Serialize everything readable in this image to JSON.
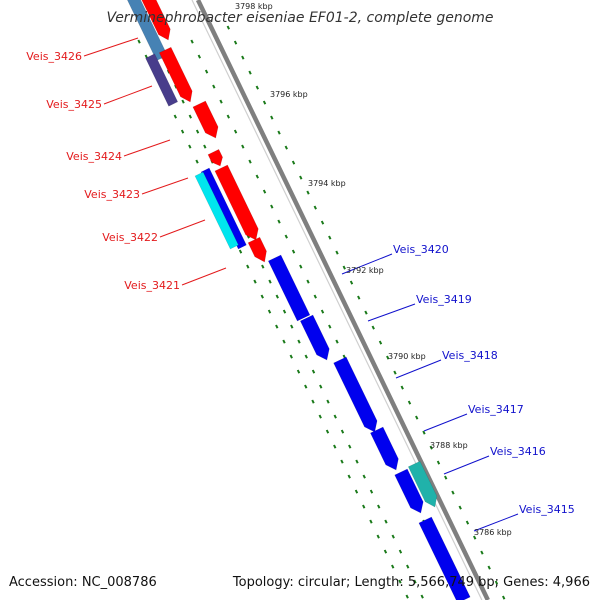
{
  "title": "Verminephrobacter eiseniae EF01-2, complete genome",
  "accession": "Accession: NC_008786",
  "summary": "Topology: circular; Length: 5,566,749 bp; Genes: 4,966",
  "colors": {
    "reverse_label": "#e31a1c",
    "forward_label": "#1111cc",
    "cds_red": "#ff0000",
    "cds_blue": "#0000ee",
    "steelblue": "#4682b4",
    "navy": "#483d8b",
    "cyan": "#00e5ee",
    "teal": "#20b2aa",
    "backbone": "#7f7f7f",
    "tick": "#1a7a1a"
  },
  "ticks": [
    {
      "label": "3798 kbp"
    },
    {
      "label": "3796 kbp"
    },
    {
      "label": "3794 kbp"
    },
    {
      "label": "3792 kbp"
    },
    {
      "label": "3790 kbp"
    },
    {
      "label": "3788 kbp"
    },
    {
      "label": "3786 kbp"
    }
  ],
  "genes_reverse": [
    {
      "label": "Veis_3426"
    },
    {
      "label": "Veis_3425"
    },
    {
      "label": "Veis_3424"
    },
    {
      "label": "Veis_3423"
    },
    {
      "label": "Veis_3422"
    },
    {
      "label": "Veis_3421"
    }
  ],
  "genes_forward": [
    {
      "label": "Veis_3420"
    },
    {
      "label": "Veis_3419"
    },
    {
      "label": "Veis_3418"
    },
    {
      "label": "Veis_3417"
    },
    {
      "label": "Veis_3416"
    },
    {
      "label": "Veis_3415"
    }
  ]
}
